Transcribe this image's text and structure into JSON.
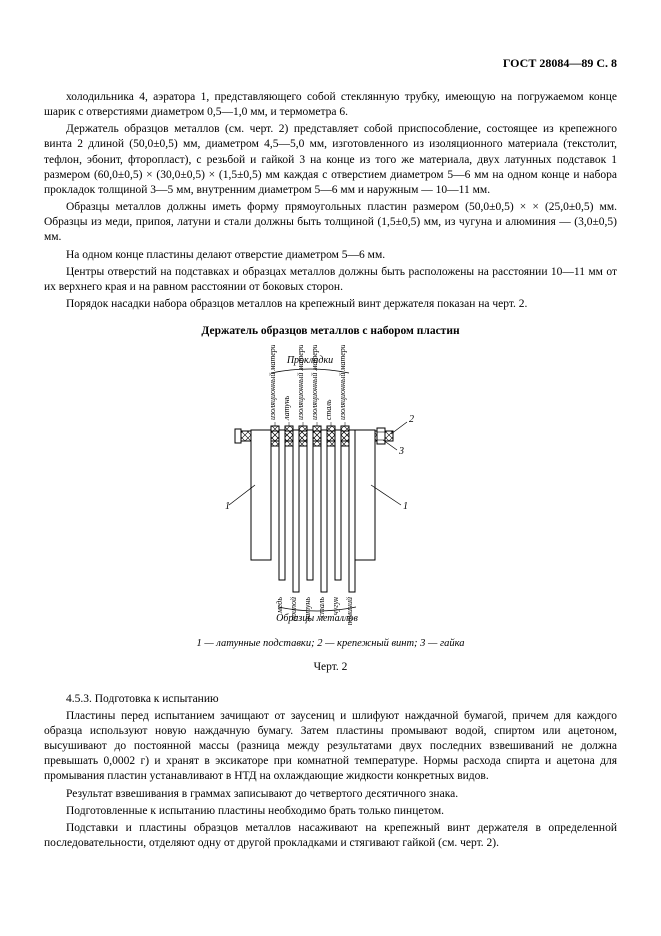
{
  "header": "ГОСТ 28084—89 С. 8",
  "para1": "холодильника 4, аэратора 1, представляющего собой стеклянную трубку, имеющую на погружаемом конце шарик с отверстиями диаметром 0,5—1,0 мм, и термометра 6.",
  "para2": "Держатель образцов металлов (см. черт. 2) представляет собой приспособление, состоящее из крепежного винта 2 длиной (50,0±0,5) мм, диаметром 4,5—5,0 мм, изготовленного из изоляционного материала (текстолит, тефлон, эбонит, фторопласт), с резьбой и гайкой 3 на конце из того же материала, двух латунных подставок 1 размером (60,0±0,5) × (30,0±0,5) × (1,5±0,5) мм каждая с отверстием диаметром 5—6 мм на одном конце и набора прокладок толщиной 3—5 мм, внутренним диаметром 5—6 мм и наружным — 10—11 мм.",
  "para3": "Образцы металлов должны иметь форму прямоугольных пластин размером (50,0±0,5) × × (25,0±0,5) мм. Образцы из меди, припоя, латуни и стали должны быть толщиной (1,5±0,5) мм, из чугуна и алюминия — (3,0±0,5) мм.",
  "para4": "На одном конце пластины делают отверстие диаметром 5—6 мм.",
  "para5": "Центры отверстий на подставках и образцах металлов должны быть расположены на расстоянии 10—11 мм от их верхнего края и на равном расстоянии от боковых сторон.",
  "para6": "Порядок насадки набора образцов металлов на крепежный винт держателя показан на черт. 2.",
  "figTitle": "Держатель образцов металлов с набором пластин",
  "figLabels": {
    "top": "Прокладки",
    "bottom": "Образцы металлов",
    "leader1a": "1",
    "leader1b": "1",
    "leader2": "2",
    "leader3": "3",
    "spacerLabels": [
      "изоляционный материал",
      "латунь",
      "изоляционный материал",
      "изоляционный материал",
      "сталь",
      "изоляционный материал"
    ],
    "plateLabels": [
      "медь",
      "припой",
      "латунь",
      "сталь",
      "чугун",
      "алюминий"
    ]
  },
  "figCaption": "1 — латунные подставки; 2 — крепежный винт; 3 — гайка",
  "figNo": "Черт. 2",
  "para7": "4.5.3.  Подготовка к испытанию",
  "para8": "Пластины перед испытанием зачищают от заусениц и шлифуют наждачной бумагой, причем для каждого образца используют новую наждачную бумагу. Затем пластины промывают водой, спиртом или ацетоном, высушивают до постоянной массы (разница между результатами двух последних взвешиваний не должна превышать 0,0002 г) и хранят в эксикаторе при комнатной температуре. Нормы расхода спирта и ацетона для промывания пластин устанавливают в НТД на охлаждающие жидкости конкретных видов.",
  "para9": "Результат взвешивания в граммах записывают до четвертого десятичного знака.",
  "para10": "Подготовленные к испытанию пластины необходимо брать только пинцетом.",
  "para11": "Подставки и пластины образцов металлов насаживают на крепежный винт держателя в определенной последовательности, отделяют одну от другой прокладками и стягивают гайкой (см. черт. 2).",
  "figStyle": {
    "stroke": "#000000",
    "strokeWidth": 1,
    "hatchWidth": 0.6,
    "fontSize": 8,
    "fontFamily": "Times New Roman, serif"
  }
}
